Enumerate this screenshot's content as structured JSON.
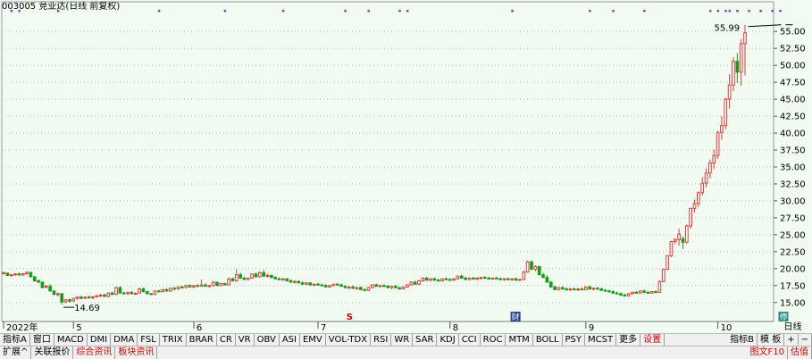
{
  "title": "003005 竞业达(日线 前复权)",
  "period_label": "日线",
  "chart_data": {
    "type": "candlestick",
    "title": "003005 竞业达(日线 前复权)",
    "ylim": [
      12.2,
      57.8
    ],
    "yticks": [
      "15.00",
      "17.50",
      "20.00",
      "22.50",
      "25.00",
      "27.50",
      "30.00",
      "32.50",
      "35.00",
      "37.50",
      "40.00",
      "42.50",
      "45.00",
      "47.50",
      "50.00",
      "52.50",
      "55.00"
    ],
    "xticks": [
      {
        "label": "2022年",
        "i": 0
      },
      {
        "label": "5",
        "i": 18
      },
      {
        "label": "6",
        "i": 49
      },
      {
        "label": "7",
        "i": 81
      },
      {
        "label": "8",
        "i": 115
      },
      {
        "label": "9",
        "i": 150
      },
      {
        "label": "10",
        "i": 184
      }
    ],
    "annotations": [
      {
        "text": "55.99",
        "i": 201,
        "value": 55.99,
        "kind": "high"
      },
      {
        "text": "14.69",
        "i": 15,
        "value": 14.69,
        "kind": "low"
      }
    ],
    "markers": [
      {
        "text": "S",
        "i": 89,
        "color": "#d00000"
      },
      {
        "text": "财",
        "i": 132,
        "color": "#2a3a8c"
      },
      {
        "text": "停",
        "i": 201,
        "color": "#2a8c7c"
      }
    ],
    "event_dots": [
      2,
      4,
      14,
      40,
      57,
      72,
      88,
      94,
      102,
      104,
      131,
      151,
      157,
      165,
      182,
      184,
      186,
      187,
      189,
      192,
      195,
      198,
      200
    ],
    "candles": [
      [
        19.3,
        19.55,
        19.1,
        19.4
      ],
      [
        19.35,
        19.4,
        18.9,
        19.0
      ],
      [
        19.0,
        19.2,
        18.8,
        19.1
      ],
      [
        19.1,
        19.35,
        18.95,
        19.2
      ],
      [
        19.25,
        19.4,
        19.0,
        19.05
      ],
      [
        19.05,
        19.35,
        18.95,
        19.25
      ],
      [
        19.25,
        19.6,
        19.1,
        19.45
      ],
      [
        19.45,
        19.5,
        18.7,
        18.8
      ],
      [
        18.8,
        18.9,
        18.1,
        18.2
      ],
      [
        18.2,
        18.4,
        17.9,
        18.0
      ],
      [
        18.0,
        18.1,
        17.1,
        17.2
      ],
      [
        17.25,
        17.6,
        17.1,
        17.4
      ],
      [
        17.4,
        17.7,
        16.6,
        16.7
      ],
      [
        16.7,
        16.8,
        16.1,
        16.2
      ],
      [
        16.2,
        16.5,
        15.9,
        16.3
      ],
      [
        16.3,
        16.4,
        14.69,
        15.1
      ],
      [
        15.1,
        15.5,
        14.9,
        15.4
      ],
      [
        15.4,
        15.6,
        15.0,
        15.2
      ],
      [
        15.25,
        15.7,
        15.1,
        15.6
      ],
      [
        15.6,
        15.9,
        15.4,
        15.8
      ],
      [
        15.8,
        16.0,
        15.5,
        15.6
      ],
      [
        15.65,
        15.9,
        15.5,
        15.8
      ],
      [
        15.8,
        16.0,
        15.6,
        15.7
      ],
      [
        15.75,
        15.9,
        15.5,
        15.85
      ],
      [
        15.85,
        16.1,
        15.7,
        16.0
      ],
      [
        16.0,
        16.3,
        15.8,
        16.1
      ],
      [
        16.1,
        16.3,
        15.85,
        15.9
      ],
      [
        15.9,
        16.5,
        15.8,
        16.4
      ],
      [
        16.4,
        16.6,
        16.1,
        16.2
      ],
      [
        16.2,
        17.3,
        16.1,
        17.2
      ],
      [
        17.2,
        17.4,
        16.3,
        16.4
      ],
      [
        16.4,
        16.6,
        16.2,
        16.3
      ],
      [
        16.3,
        16.6,
        16.1,
        16.5
      ],
      [
        16.5,
        16.7,
        16.2,
        16.3
      ],
      [
        16.3,
        16.5,
        16.1,
        16.35
      ],
      [
        16.4,
        17.2,
        16.3,
        17.0
      ],
      [
        17.0,
        17.2,
        16.5,
        16.6
      ],
      [
        16.6,
        16.7,
        16.2,
        16.3
      ],
      [
        16.3,
        16.4,
        16.1,
        16.2
      ],
      [
        16.2,
        16.8,
        16.1,
        16.7
      ],
      [
        16.7,
        16.9,
        16.5,
        16.6
      ],
      [
        16.6,
        17.0,
        16.5,
        16.9
      ],
      [
        16.9,
        17.1,
        16.6,
        16.7
      ],
      [
        16.7,
        17.2,
        16.6,
        17.1
      ],
      [
        17.1,
        17.3,
        16.9,
        17.0
      ],
      [
        17.0,
        17.4,
        16.9,
        17.3
      ],
      [
        17.3,
        17.5,
        17.1,
        17.2
      ],
      [
        17.2,
        17.6,
        17.1,
        17.5
      ],
      [
        17.5,
        17.7,
        17.2,
        17.3
      ],
      [
        17.3,
        17.6,
        17.1,
        17.5
      ],
      [
        17.5,
        17.7,
        17.3,
        17.4
      ],
      [
        17.4,
        18.4,
        17.3,
        17.6
      ],
      [
        17.6,
        17.8,
        17.3,
        17.4
      ],
      [
        17.4,
        17.6,
        17.2,
        17.5
      ],
      [
        17.5,
        18.2,
        17.4,
        18.0
      ],
      [
        18.0,
        18.1,
        17.4,
        17.5
      ],
      [
        17.5,
        17.9,
        17.4,
        17.8
      ],
      [
        17.8,
        17.9,
        17.5,
        17.6
      ],
      [
        17.6,
        18.7,
        17.5,
        18.5
      ],
      [
        18.5,
        18.7,
        18.1,
        18.2
      ],
      [
        18.2,
        19.9,
        18.1,
        19.1
      ],
      [
        19.1,
        19.4,
        18.5,
        18.6
      ],
      [
        18.6,
        18.8,
        18.3,
        18.4
      ],
      [
        18.4,
        18.7,
        18.3,
        18.6
      ],
      [
        18.6,
        19.3,
        18.5,
        19.2
      ],
      [
        19.2,
        19.4,
        18.7,
        18.8
      ],
      [
        18.8,
        19.6,
        18.7,
        19.4
      ],
      [
        19.4,
        19.8,
        18.8,
        18.9
      ],
      [
        18.9,
        19.2,
        18.7,
        19.0
      ],
      [
        19.0,
        19.1,
        18.6,
        18.7
      ],
      [
        18.7,
        18.9,
        18.4,
        18.5
      ],
      [
        18.5,
        18.7,
        18.3,
        18.4
      ],
      [
        18.4,
        18.6,
        18.2,
        18.5
      ],
      [
        18.5,
        18.6,
        18.1,
        18.2
      ],
      [
        18.2,
        18.4,
        17.9,
        18.0
      ],
      [
        18.0,
        18.3,
        17.8,
        18.1
      ],
      [
        18.1,
        18.3,
        17.8,
        17.9
      ],
      [
        17.9,
        18.1,
        17.6,
        17.7
      ],
      [
        17.7,
        18.0,
        17.6,
        17.9
      ],
      [
        17.9,
        18.0,
        17.5,
        17.6
      ],
      [
        17.6,
        17.8,
        17.4,
        17.7
      ],
      [
        17.7,
        17.9,
        17.5,
        17.6
      ],
      [
        17.6,
        17.8,
        17.4,
        17.5
      ],
      [
        17.5,
        17.7,
        17.2,
        17.3
      ],
      [
        17.3,
        17.6,
        17.2,
        17.5
      ],
      [
        17.5,
        17.8,
        17.4,
        17.7
      ],
      [
        17.7,
        17.9,
        17.5,
        17.6
      ],
      [
        17.6,
        17.8,
        17.3,
        17.4
      ],
      [
        17.4,
        17.6,
        17.1,
        17.2
      ],
      [
        17.2,
        17.4,
        17.0,
        17.3
      ],
      [
        17.3,
        17.5,
        17.0,
        17.1
      ],
      [
        17.1,
        17.3,
        16.9,
        17.2
      ],
      [
        17.2,
        17.4,
        16.8,
        16.9
      ],
      [
        16.9,
        17.1,
        16.7,
        16.8
      ],
      [
        16.8,
        17.3,
        16.7,
        17.2
      ],
      [
        17.2,
        17.7,
        17.1,
        17.6
      ],
      [
        17.6,
        17.8,
        17.3,
        17.4
      ],
      [
        17.4,
        17.6,
        17.2,
        17.5
      ],
      [
        17.5,
        17.7,
        17.3,
        17.4
      ],
      [
        17.4,
        17.6,
        17.1,
        17.2
      ],
      [
        17.2,
        17.5,
        17.0,
        17.4
      ],
      [
        17.4,
        17.6,
        17.1,
        17.2
      ],
      [
        17.2,
        17.3,
        16.9,
        17.0
      ],
      [
        17.0,
        17.4,
        16.9,
        17.3
      ],
      [
        17.3,
        17.7,
        17.2,
        17.6
      ],
      [
        17.6,
        18.1,
        17.5,
        18.0
      ],
      [
        18.0,
        18.2,
        17.6,
        17.7
      ],
      [
        17.7,
        18.3,
        17.6,
        18.2
      ],
      [
        18.2,
        18.7,
        18.1,
        18.6
      ],
      [
        18.6,
        18.8,
        18.2,
        18.3
      ],
      [
        18.3,
        18.6,
        18.1,
        18.5
      ],
      [
        18.5,
        18.7,
        18.2,
        18.3
      ],
      [
        18.3,
        18.5,
        18.1,
        18.2
      ],
      [
        18.2,
        18.6,
        18.1,
        18.5
      ],
      [
        18.5,
        18.7,
        18.3,
        18.4
      ],
      [
        18.4,
        18.6,
        18.2,
        18.3
      ],
      [
        18.3,
        18.6,
        18.2,
        18.5
      ],
      [
        18.5,
        19.0,
        18.4,
        18.9
      ],
      [
        18.9,
        19.1,
        18.5,
        18.6
      ],
      [
        18.6,
        18.8,
        18.3,
        18.4
      ],
      [
        18.4,
        18.7,
        18.3,
        18.6
      ],
      [
        18.6,
        18.8,
        18.4,
        18.5
      ],
      [
        18.5,
        18.7,
        18.3,
        18.6
      ],
      [
        18.6,
        18.8,
        18.4,
        18.7
      ],
      [
        18.7,
        18.9,
        18.5,
        18.6
      ],
      [
        18.6,
        18.8,
        18.4,
        18.5
      ],
      [
        18.5,
        18.7,
        18.4,
        18.6
      ],
      [
        18.6,
        18.8,
        18.4,
        18.5
      ],
      [
        18.5,
        18.7,
        18.3,
        18.4
      ],
      [
        18.4,
        18.6,
        18.2,
        18.5
      ],
      [
        18.5,
        18.7,
        18.3,
        18.4
      ],
      [
        18.4,
        18.6,
        18.2,
        18.5
      ],
      [
        18.5,
        18.7,
        18.2,
        18.3
      ],
      [
        18.3,
        18.5,
        18.2,
        18.4
      ],
      [
        18.4,
        19.7,
        18.3,
        19.5
      ],
      [
        19.5,
        21.2,
        19.4,
        21.0
      ],
      [
        21.0,
        21.2,
        19.8,
        19.9
      ],
      [
        19.9,
        20.5,
        19.6,
        20.3
      ],
      [
        20.3,
        20.4,
        19.0,
        19.1
      ],
      [
        19.1,
        19.4,
        18.6,
        18.7
      ],
      [
        18.7,
        19.0,
        17.9,
        18.0
      ],
      [
        18.0,
        18.2,
        17.2,
        17.3
      ],
      [
        17.3,
        17.5,
        16.8,
        16.9
      ],
      [
        16.9,
        17.3,
        16.8,
        17.2
      ],
      [
        17.2,
        17.4,
        16.9,
        17.0
      ],
      [
        17.0,
        17.2,
        16.8,
        16.9
      ],
      [
        16.9,
        17.1,
        16.7,
        17.0
      ],
      [
        17.0,
        17.2,
        16.8,
        16.9
      ],
      [
        16.9,
        17.1,
        16.7,
        17.0
      ],
      [
        17.0,
        17.2,
        16.8,
        16.9
      ],
      [
        16.9,
        17.4,
        16.8,
        17.3
      ],
      [
        17.3,
        17.5,
        16.9,
        17.0
      ],
      [
        17.0,
        17.2,
        16.8,
        17.1
      ],
      [
        17.1,
        17.3,
        16.9,
        17.0
      ],
      [
        17.0,
        17.2,
        16.7,
        16.8
      ],
      [
        16.8,
        17.0,
        16.6,
        16.7
      ],
      [
        16.7,
        16.9,
        16.5,
        16.6
      ],
      [
        16.6,
        16.8,
        16.3,
        16.4
      ],
      [
        16.4,
        16.6,
        16.2,
        16.3
      ],
      [
        16.3,
        16.5,
        16.0,
        16.1
      ],
      [
        16.1,
        16.3,
        15.9,
        16.0
      ],
      [
        16.0,
        16.4,
        15.9,
        16.3
      ],
      [
        16.3,
        16.6,
        16.2,
        16.5
      ],
      [
        16.5,
        16.7,
        16.3,
        16.4
      ],
      [
        16.4,
        16.8,
        16.3,
        16.7
      ],
      [
        16.7,
        16.9,
        16.4,
        16.5
      ],
      [
        16.5,
        16.7,
        16.3,
        16.4
      ],
      [
        16.4,
        16.7,
        16.3,
        16.6
      ],
      [
        16.6,
        16.8,
        16.4,
        16.5
      ],
      [
        16.5,
        18.3,
        16.4,
        18.1
      ],
      [
        18.1,
        19.9,
        18.0,
        19.9
      ],
      [
        19.9,
        21.9,
        19.8,
        21.9
      ],
      [
        21.9,
        24.1,
        21.7,
        24.0
      ],
      [
        24.0,
        24.5,
        23.6,
        24.3
      ],
      [
        24.3,
        25.9,
        23.4,
        25.1
      ],
      [
        24.4,
        24.8,
        22.9,
        23.9
      ],
      [
        23.9,
        26.5,
        23.7,
        26.3
      ],
      [
        26.3,
        29.0,
        25.9,
        28.9
      ],
      [
        28.9,
        30.2,
        28.3,
        29.6
      ],
      [
        29.6,
        31.4,
        29.1,
        31.2
      ],
      [
        31.2,
        33.5,
        30.8,
        32.6
      ],
      [
        32.6,
        34.8,
        32.0,
        34.1
      ],
      [
        34.1,
        36.1,
        33.3,
        35.6
      ],
      [
        35.6,
        37.6,
        34.7,
        36.7
      ],
      [
        36.7,
        40.3,
        36.2,
        40.1
      ],
      [
        40.1,
        42.5,
        39.0,
        41.1
      ],
      [
        41.1,
        45.2,
        40.6,
        45.0
      ],
      [
        45.0,
        48.7,
        43.6,
        47.1
      ],
      [
        47.1,
        51.2,
        46.2,
        50.6
      ],
      [
        50.6,
        51.8,
        47.4,
        49.0
      ],
      [
        49.0,
        53.9,
        47.0,
        53.2
      ],
      [
        53.2,
        55.99,
        48.5,
        54.8
      ]
    ]
  },
  "right_panel": {
    "period": "日线",
    "zoom_in": "+",
    "zoom_out": "−"
  },
  "toolbar": {
    "tabs": [
      {
        "label": "指标A",
        "red": false
      },
      {
        "label": "窗口",
        "red": false
      },
      {
        "label": "MACD",
        "red": false
      },
      {
        "label": "DMI",
        "red": false
      },
      {
        "label": "DMA",
        "red": false
      },
      {
        "label": "FSL",
        "red": false
      },
      {
        "label": "TRIX",
        "red": false
      },
      {
        "label": "BRAR",
        "red": false
      },
      {
        "label": "CR",
        "red": false
      },
      {
        "label": "VR",
        "red": false
      },
      {
        "label": "OBV",
        "red": false
      },
      {
        "label": "ASI",
        "red": false
      },
      {
        "label": "EMV",
        "red": false
      },
      {
        "label": "VOL-TDX",
        "red": false
      },
      {
        "label": "RSI",
        "red": false
      },
      {
        "label": "WR",
        "red": false
      },
      {
        "label": "SAR",
        "red": false
      },
      {
        "label": "KDJ",
        "red": false
      },
      {
        "label": "CCI",
        "red": false
      },
      {
        "label": "ROC",
        "red": false
      },
      {
        "label": "MTM",
        "red": false
      },
      {
        "label": "BOLL",
        "red": false
      },
      {
        "label": "PSY",
        "red": false
      },
      {
        "label": "MCST",
        "red": false
      },
      {
        "label": "更多",
        "red": false
      },
      {
        "label": "设置",
        "red": true
      }
    ],
    "right_tabs": [
      {
        "label": "指标B",
        "red": false
      },
      {
        "label": "模 板",
        "red": false
      }
    ]
  },
  "bottom_bar": {
    "tabs": [
      {
        "label": "扩展^",
        "red": false
      },
      {
        "label": "关联报价",
        "red": false
      },
      {
        "label": "综合资讯",
        "red": true
      },
      {
        "label": "板块资讯",
        "red": true
      }
    ],
    "right_tabs": [
      {
        "label": "图文F10",
        "red": true
      },
      {
        "label": "估值",
        "red": true
      }
    ]
  },
  "colors": {
    "background": "#f1fbf1",
    "up": "#e23a3a",
    "down": "#1d9a1d",
    "grid": "#bfbfbf",
    "event_dot": "#8a3cd0"
  }
}
